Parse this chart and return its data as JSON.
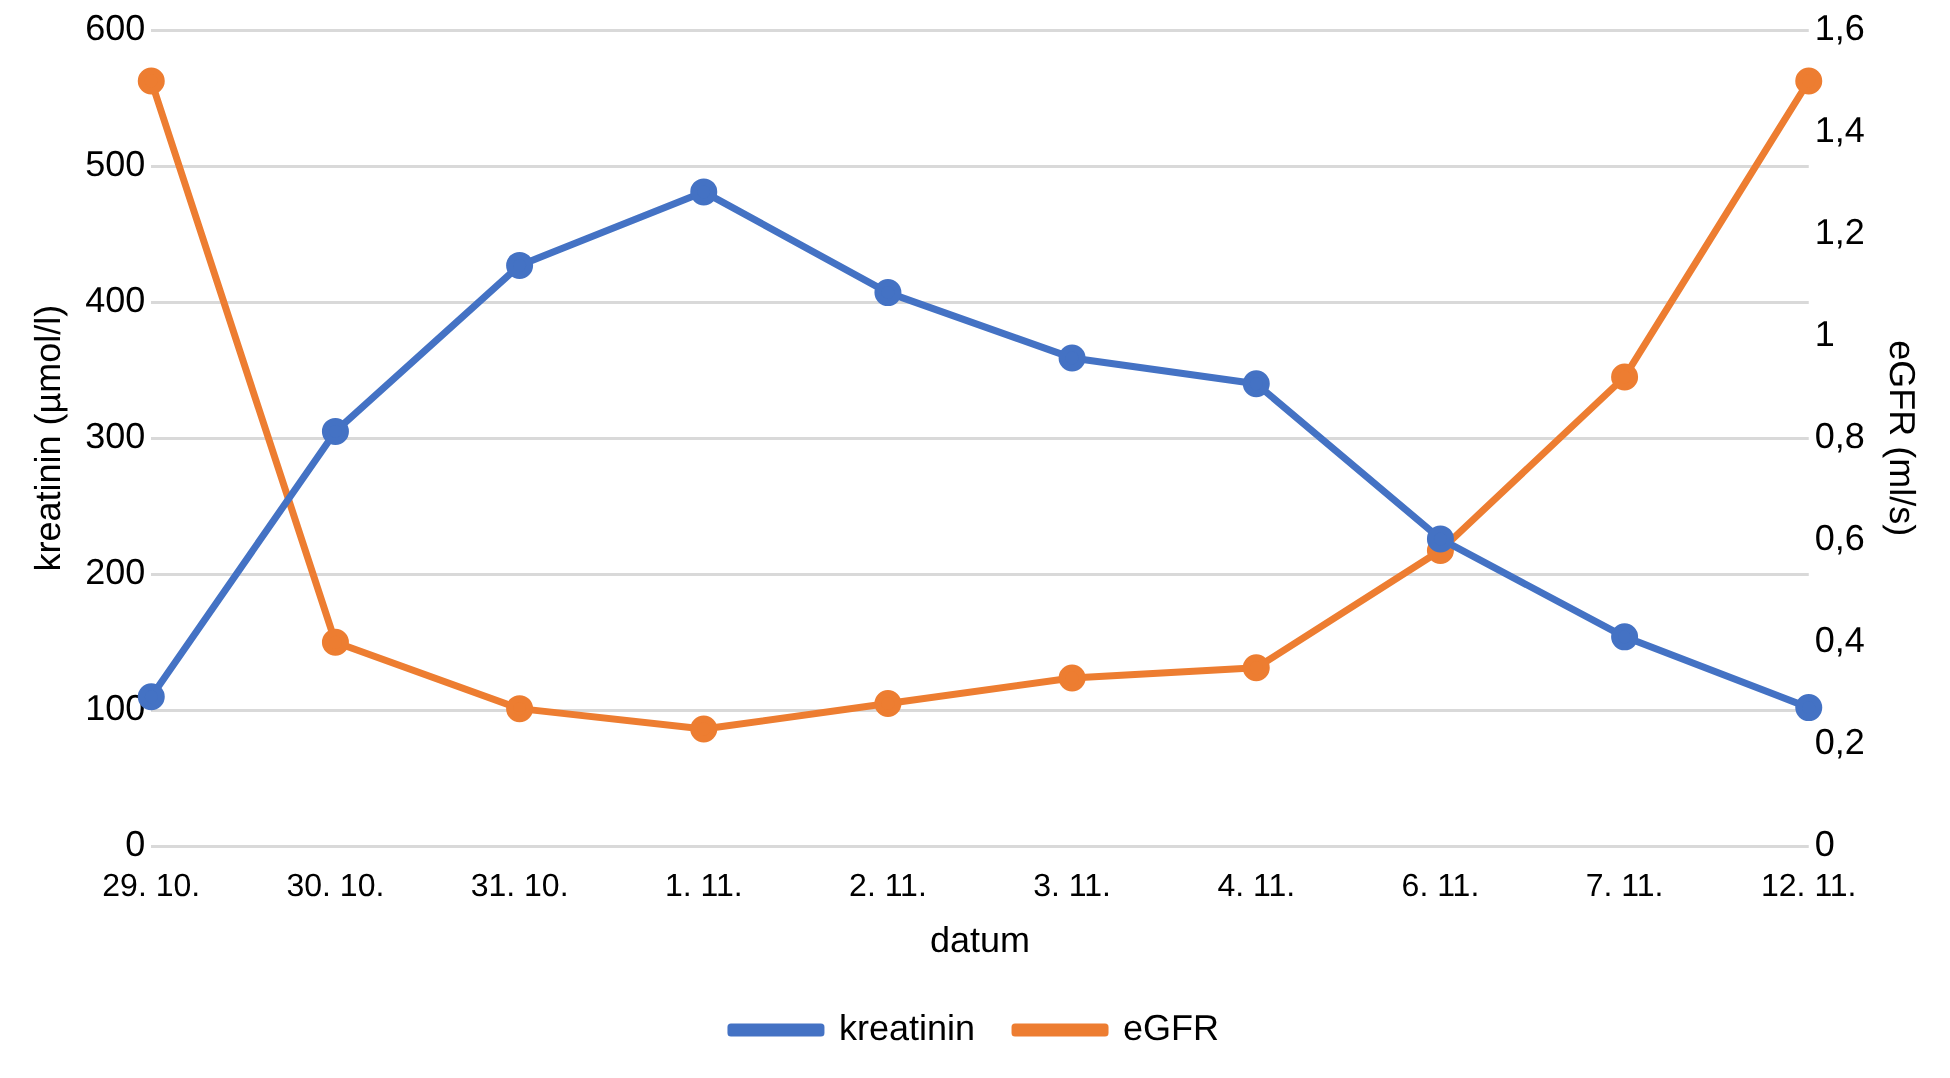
{
  "chart_data": {
    "type": "line",
    "xlabel": "datum",
    "ylabel": "kreatinin (µmol/l)",
    "y2label": "eGFR (ml/s)",
    "categories": [
      "29. 10.",
      "30. 10.",
      "31. 10.",
      "1. 11.",
      "2. 11.",
      "3. 11.",
      "4. 11.",
      "6. 11.",
      "7. 11.",
      "12. 11."
    ],
    "series": [
      {
        "name": "kreatinin",
        "color": "#4472c4",
        "values": [
          110,
          305,
          427,
          481,
          407,
          359,
          340,
          226,
          154,
          102
        ]
      },
      {
        "name": "eGFR",
        "color": "#ed7d31",
        "axis": "y2",
        "values": [
          1.5,
          0.4,
          0.27,
          0.23,
          0.28,
          0.33,
          0.35,
          0.58,
          0.92,
          1.5
        ]
      }
    ],
    "ylim": [
      0,
      600
    ],
    "yticks": [
      0,
      100,
      200,
      300,
      400,
      500,
      600
    ],
    "y2lim": [
      0,
      1.6
    ],
    "y2ticks": [
      {
        "value": 0,
        "label": "0"
      },
      {
        "value": 0.2,
        "label": "0,2"
      },
      {
        "value": 0.4,
        "label": "0,4"
      },
      {
        "value": 0.6,
        "label": "0,6"
      },
      {
        "value": 0.8,
        "label": "0,8"
      },
      {
        "value": 1,
        "label": "1"
      },
      {
        "value": 1.2,
        "label": "1,2"
      },
      {
        "value": 1.4,
        "label": "1,4"
      },
      {
        "value": 1.6,
        "label": "1,6"
      }
    ],
    "grid": "y",
    "legend": "bottom",
    "marker": "circle",
    "line_style": "solid"
  }
}
